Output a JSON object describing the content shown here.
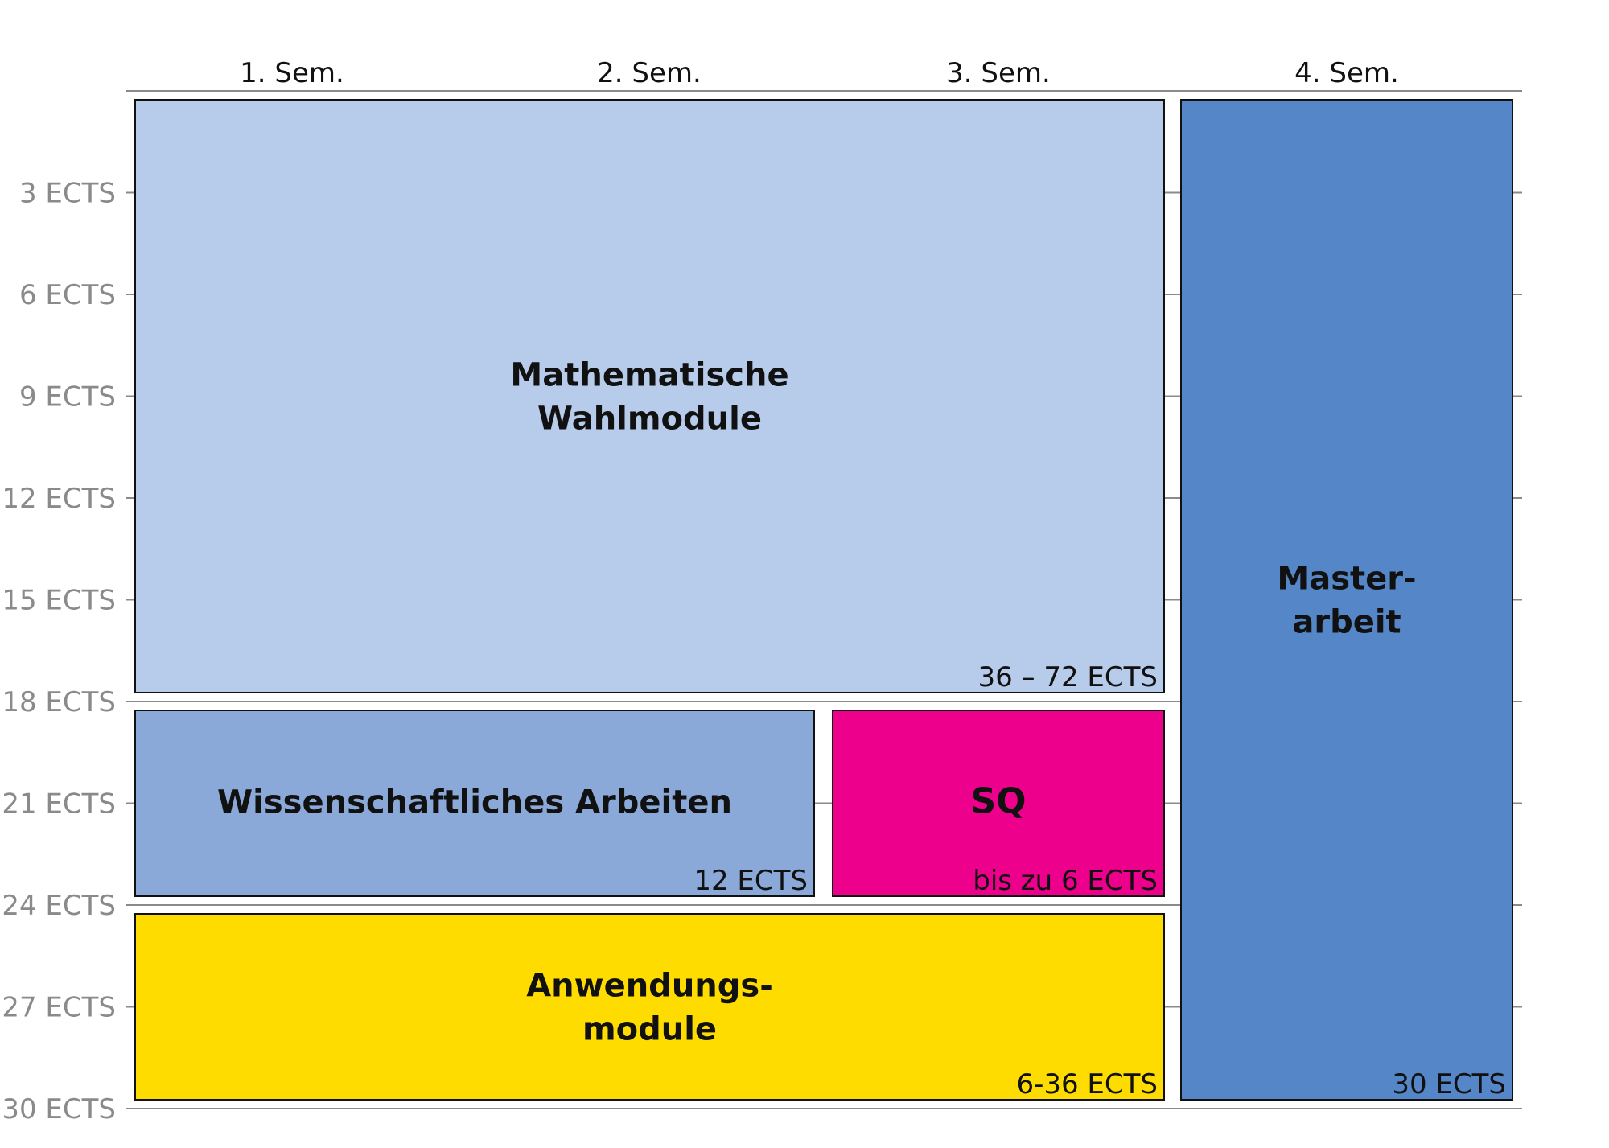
{
  "chart_data": {
    "type": "table",
    "semesters": [
      "1. Sem.",
      "2. Sem.",
      "3. Sem.",
      "4. Sem."
    ],
    "y_labels": [
      "3 ECTS",
      "6 ECTS",
      "9 ECTS",
      "12 ECTS",
      "15 ECTS",
      "18 ECTS",
      "21 ECTS",
      "24 ECTS",
      "27 ECTS",
      "30 ECTS"
    ],
    "ylim": [
      0,
      30
    ],
    "blocks": [
      {
        "id": "mathematische-wahlmodule",
        "title": [
          "Mathematische",
          "Wahlmodule"
        ],
        "ects": "36 – 72 ECTS",
        "sem_start": 1,
        "sem_end": 3,
        "y_start": 0,
        "y_end": 18,
        "color": "#b7cbea"
      },
      {
        "id": "wissenschaftliches-arbeiten",
        "title": [
          "Wissenschaftliches Arbeiten"
        ],
        "ects": "12 ECTS",
        "sem_start": 1,
        "sem_end": 2,
        "y_start": 18,
        "y_end": 24,
        "color": "#8aa9d8"
      },
      {
        "id": "sq",
        "title": [
          "SQ"
        ],
        "ects": "bis zu 6 ECTS",
        "sem_start": 3,
        "sem_end": 3,
        "y_start": 18,
        "y_end": 24,
        "color": "#ec008c"
      },
      {
        "id": "anwendungsmodule",
        "title": [
          "Anwendungs-",
          "module"
        ],
        "ects": "6-36 ECTS",
        "sem_start": 1,
        "sem_end": 3,
        "y_start": 24,
        "y_end": 30,
        "color": "#ffdc00"
      },
      {
        "id": "masterarbeit",
        "title": [
          "Master-",
          "arbeit"
        ],
        "ects": "30 ECTS",
        "sem_start": 4,
        "sem_end": 4,
        "y_start": 0,
        "y_end": 30,
        "color": "#5587c8"
      }
    ]
  }
}
